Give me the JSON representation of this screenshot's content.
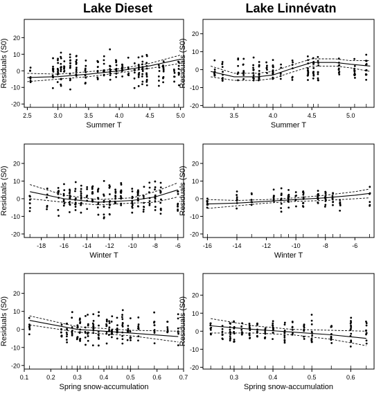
{
  "titles": {
    "left": "Lake Dieset",
    "right": "Lake Linnévatn"
  },
  "chart_data": [
    {
      "id": "dieset-summer",
      "type": "scatter",
      "title": "",
      "xlabel": "Summer T",
      "ylabel": "Residuals (S0)",
      "xlim": [
        2.45,
        5.05
      ],
      "ylim": [
        -22,
        31
      ],
      "xticks": [
        2.5,
        3.0,
        3.5,
        4.0,
        4.5,
        5.0
      ],
      "xtick_labels": [
        "2.5",
        "3.0",
        "3.5",
        "4.0",
        "4.5",
        "5.0"
      ],
      "yticks": [
        -20,
        -10,
        0,
        10,
        20
      ],
      "ytick_labels": [
        "-20",
        "-10",
        "0",
        "10",
        "20"
      ],
      "x_groups": [
        2.55,
        2.92,
        3.0,
        3.05,
        3.1,
        3.2,
        3.3,
        3.45,
        3.65,
        3.75,
        3.85,
        3.95,
        4.05,
        4.15,
        4.25,
        4.32,
        4.38,
        4.45,
        4.65,
        4.72,
        4.9,
        4.97
      ],
      "seed": 11,
      "spread": 8,
      "fit": {
        "x": [
          2.5,
          3.0,
          3.5,
          4.0,
          4.5,
          5.0
        ],
        "y": [
          -4,
          -3.5,
          -2,
          0,
          3,
          7
        ]
      },
      "ci": {
        "x": [
          2.5,
          3.0,
          3.5,
          4.0,
          4.5,
          5.0
        ],
        "upper": [
          -1.5,
          -2,
          -0.5,
          1.2,
          4.5,
          9.5
        ],
        "lower": [
          -6.5,
          -5,
          -3.5,
          -1.2,
          1.5,
          4.5
        ]
      }
    },
    {
      "id": "linnevatn-summer",
      "type": "scatter",
      "title": "",
      "xlabel": "Summer T",
      "ylabel": "Residuals (S0)",
      "xlim": [
        3.1,
        5.3
      ],
      "ylim": [
        -21,
        28
      ],
      "xticks": [
        3.5,
        4.0,
        4.5,
        5.0
      ],
      "xtick_labels": [
        "3.5",
        "4.0",
        "4.5",
        "5.0"
      ],
      "yticks": [
        -20,
        -10,
        0,
        10,
        20
      ],
      "ytick_labels": [
        "-20",
        "-10",
        "0",
        "10",
        "20"
      ],
      "x_groups": [
        3.25,
        3.35,
        3.55,
        3.62,
        3.75,
        3.82,
        3.92,
        4.0,
        4.1,
        4.25,
        4.45,
        4.52,
        4.58,
        4.85,
        5.05,
        5.2
      ],
      "seed": 23,
      "spread": 6,
      "fit": {
        "x": [
          3.2,
          3.5,
          3.8,
          4.0,
          4.2,
          4.5,
          4.8,
          5.0,
          5.25
        ],
        "y": [
          -1,
          -4,
          -4,
          -3,
          0,
          4,
          4,
          3,
          2
        ]
      },
      "ci": {
        "x": [
          3.2,
          3.5,
          3.8,
          4.0,
          4.2,
          4.5,
          4.8,
          5.0,
          5.25
        ],
        "upper": [
          2,
          -2,
          -2,
          -1,
          2,
          6,
          6,
          5,
          5
        ],
        "lower": [
          -4,
          -6,
          -6,
          -5,
          -2,
          2,
          2,
          1,
          -1
        ]
      }
    },
    {
      "id": "dieset-winter",
      "type": "scatter",
      "title": "",
      "xlabel": "Winter T",
      "ylabel": "Residuals (S0)",
      "xlim": [
        -19.5,
        -5.5
      ],
      "ylim": [
        -22,
        31
      ],
      "xticks": [
        -18,
        -16,
        -14,
        -12,
        -10,
        -8,
        -6
      ],
      "xtick_labels": [
        "-18",
        "-16",
        "-14",
        "-12",
        "-10",
        "-8",
        "-6"
      ],
      "yticks": [
        -20,
        -10,
        0,
        10,
        20
      ],
      "ytick_labels": [
        "-20",
        "-10",
        "0",
        "10",
        "20"
      ],
      "x_groups": [
        -19.0,
        -17.5,
        -16.5,
        -16.0,
        -15.5,
        -15.0,
        -14.5,
        -14.0,
        -13.5,
        -13.0,
        -12.5,
        -12.0,
        -11.5,
        -11.0,
        -10.0,
        -9.5,
        -9.0,
        -8.5,
        -8.0,
        -7.5,
        -6.0
      ],
      "seed": 37,
      "spread": 8,
      "fit": {
        "x": [
          -19,
          -16,
          -13,
          -10,
          -8,
          -6
        ],
        "y": [
          4,
          0,
          -2,
          -1,
          1,
          5
        ]
      },
      "ci": {
        "x": [
          -19,
          -16,
          -13,
          -10,
          -8,
          -6
        ],
        "upper": [
          8,
          2,
          -0.5,
          0.5,
          4,
          9
        ],
        "lower": [
          0,
          -2,
          -3.5,
          -2.5,
          -2,
          1
        ]
      }
    },
    {
      "id": "linnevatn-winter",
      "type": "scatter",
      "title": "",
      "xlabel": "Winter T",
      "ylabel": "Residuals (S0)",
      "xlim": [
        -16.3,
        -4.7
      ],
      "ylim": [
        -22,
        31
      ],
      "xticks": [
        -16,
        -14,
        -12,
        -10,
        -8,
        -6
      ],
      "xtick_labels": [
        "-16",
        "-14",
        "-12",
        "-10",
        "-8",
        "-6"
      ],
      "yticks": [
        -20,
        -10,
        0,
        10,
        20
      ],
      "ytick_labels": [
        "-20",
        "-10",
        "0",
        "10",
        "20"
      ],
      "x_groups": [
        -16.0,
        -14.0,
        -13.0,
        -11.5,
        -11.0,
        -10.5,
        -10.0,
        -9.5,
        -8.5,
        -8.0,
        -7.5,
        -7.0,
        -5.0
      ],
      "seed": 53,
      "spread": 5,
      "fit": {
        "x": [
          -16,
          -14,
          -12,
          -10,
          -8,
          -6,
          -5
        ],
        "y": [
          -3,
          -2.5,
          -1.5,
          -0.5,
          0.5,
          2,
          3
        ]
      },
      "ci": {
        "x": [
          -16,
          -14,
          -12,
          -10,
          -8,
          -6,
          -5
        ],
        "upper": [
          -0.5,
          -1,
          -0.5,
          0.5,
          2,
          4,
          5.5
        ],
        "lower": [
          -5.5,
          -4,
          -2.5,
          -1.5,
          -1,
          0,
          0.5
        ]
      }
    },
    {
      "id": "dieset-spring",
      "type": "scatter",
      "title": "",
      "xlabel": "Spring snow-accumulation",
      "ylabel": "Residuals (S0)",
      "xlim": [
        0.1,
        0.7
      ],
      "ylim": [
        -22,
        31
      ],
      "xticks": [
        0.1,
        0.2,
        0.3,
        0.4,
        0.5,
        0.6,
        0.7
      ],
      "xtick_labels": [
        "0.1",
        "0.2",
        "0.3",
        "0.4",
        "0.5",
        "0.6",
        "0.7"
      ],
      "yticks": [
        -20,
        -10,
        0,
        10,
        20
      ],
      "ytick_labels": [
        "-20",
        "-10",
        "0",
        "10",
        "20"
      ],
      "x_groups": [
        0.12,
        0.24,
        0.26,
        0.28,
        0.3,
        0.31,
        0.33,
        0.34,
        0.36,
        0.38,
        0.41,
        0.42,
        0.43,
        0.45,
        0.47,
        0.49,
        0.5,
        0.53,
        0.59,
        0.64,
        0.68
      ],
      "seed": 71,
      "spread": 7,
      "fit": {
        "x": [
          0.12,
          0.3,
          0.5,
          0.68
        ],
        "y": [
          5,
          0,
          -2,
          -4
        ]
      },
      "ci": {
        "x": [
          0.12,
          0.3,
          0.5,
          0.68
        ],
        "upper": [
          7.5,
          1.5,
          -0.5,
          -1
        ],
        "lower": [
          2.5,
          -1.5,
          -3.5,
          -7
        ]
      }
    },
    {
      "id": "linnevatn-spring",
      "type": "scatter",
      "title": "",
      "xlabel": "Spring snow-accumulation",
      "ylabel": "Residuals (S0)",
      "xlim": [
        0.22,
        0.66
      ],
      "ylim": [
        -21,
        32
      ],
      "xticks": [
        0.3,
        0.4,
        0.5,
        0.6
      ],
      "xtick_labels": [
        "0.3",
        "0.4",
        "0.5",
        "0.6"
      ],
      "yticks": [
        -20,
        -10,
        0,
        10,
        20
      ],
      "ytick_labels": [
        "-20",
        "-10",
        "0",
        "10",
        "20"
      ],
      "x_groups": [
        0.24,
        0.27,
        0.29,
        0.3,
        0.32,
        0.34,
        0.36,
        0.38,
        0.4,
        0.43,
        0.45,
        0.48,
        0.5,
        0.55,
        0.6,
        0.64
      ],
      "seed": 89,
      "spread": 6,
      "fit": {
        "x": [
          0.24,
          0.35,
          0.45,
          0.55,
          0.64
        ],
        "y": [
          3,
          1,
          -0.5,
          -2,
          -4
        ]
      },
      "ci": {
        "x": [
          0.24,
          0.35,
          0.45,
          0.55,
          0.64
        ],
        "upper": [
          7,
          3,
          1,
          0.5,
          0
        ],
        "lower": [
          -1,
          -1,
          -2,
          -4.5,
          -8
        ]
      }
    }
  ]
}
